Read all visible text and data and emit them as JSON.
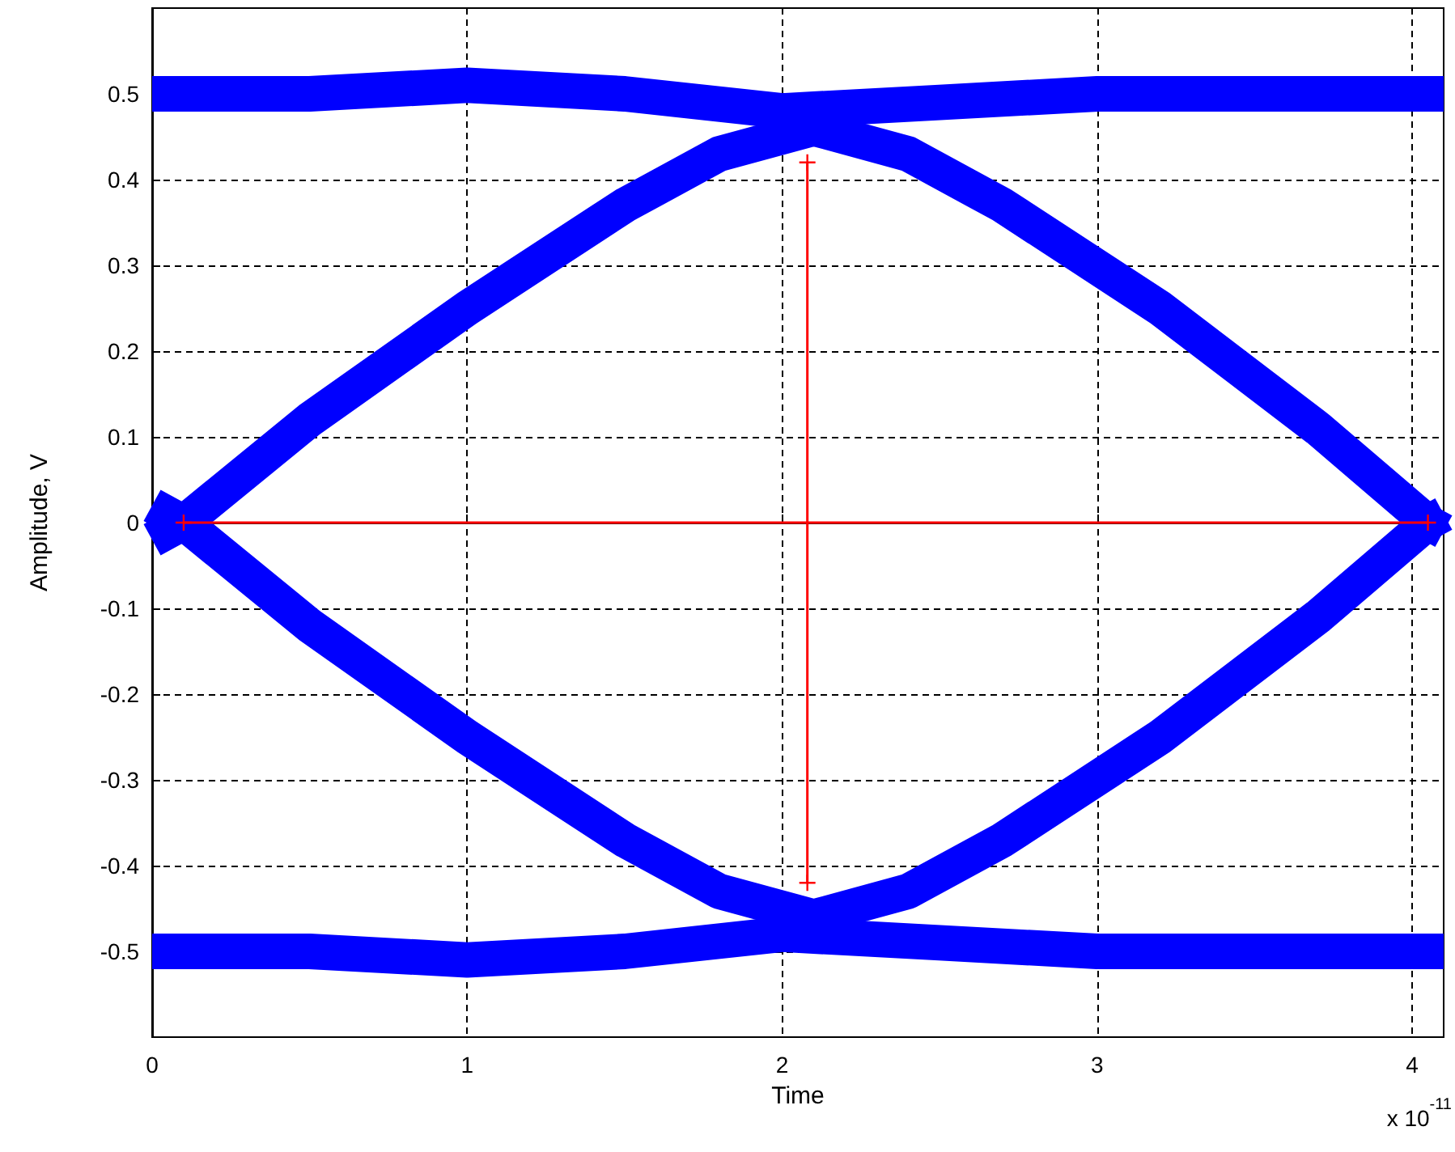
{
  "chart_data": {
    "type": "line",
    "xlabel": "Time",
    "ylabel": "Amplitude, V",
    "annotations": [
      "x 10$^{-11}$"
    ],
    "xlim": [
      0,
      4.1
    ],
    "xticks": [
      0,
      1,
      2,
      3,
      4
    ],
    "ylim": [
      -0.6,
      0.6
    ],
    "yticks": [
      -0.5,
      -0.4,
      -0.3,
      -0.2,
      -0.1,
      0,
      0.1,
      0.2,
      0.3,
      0.4,
      0.5
    ],
    "grid": true,
    "series": [
      {
        "color": "#0000ff",
        "marker": "none",
        "x": [
          0,
          0.5,
          1,
          1.5,
          2,
          2.5,
          3,
          3.5,
          4,
          4.1
        ],
        "values": [
          0.5,
          0.5,
          0.51,
          0.5,
          0.48,
          0.49,
          0.5,
          0.5,
          0.5,
          0.5
        ]
      },
      {
        "color": "#0000ff",
        "marker": "none",
        "x": [
          0,
          0.5,
          1,
          1.5,
          2,
          2.5,
          3,
          3.5,
          4,
          4.1
        ],
        "values": [
          -0.5,
          -0.5,
          -0.51,
          -0.5,
          -0.48,
          -0.49,
          -0.5,
          -0.5,
          -0.5,
          -0.5
        ]
      },
      {
        "color": "#0000ff",
        "marker": "none",
        "x": [
          0,
          0.1,
          0.5,
          1,
          1.5,
          1.8,
          2.1,
          2.4,
          2.7,
          3.2,
          3.7,
          4.05,
          4.1
        ],
        "values": [
          -0.02,
          0,
          0.12,
          0.25,
          0.37,
          0.43,
          0.46,
          0.43,
          0.37,
          0.25,
          0.11,
          0,
          -0.01
        ]
      },
      {
        "color": "#0000ff",
        "marker": "none",
        "x": [
          0,
          0.1,
          0.5,
          1,
          1.5,
          1.8,
          2.1,
          2.4,
          2.7,
          3.2,
          3.7,
          4.05,
          4.1
        ],
        "values": [
          0.02,
          0,
          -0.12,
          -0.25,
          -0.37,
          -0.43,
          -0.46,
          -0.43,
          -0.37,
          -0.25,
          -0.11,
          0,
          0.01
        ]
      },
      {
        "color": "#ff0000",
        "marker": "cross",
        "x": [
          0.1,
          4.05
        ],
        "values": [
          0,
          0
        ]
      },
      {
        "color": "#ff0000",
        "marker": "cross",
        "x": [
          2.08,
          2.08
        ],
        "values": [
          0.42,
          -0.42
        ]
      }
    ]
  }
}
